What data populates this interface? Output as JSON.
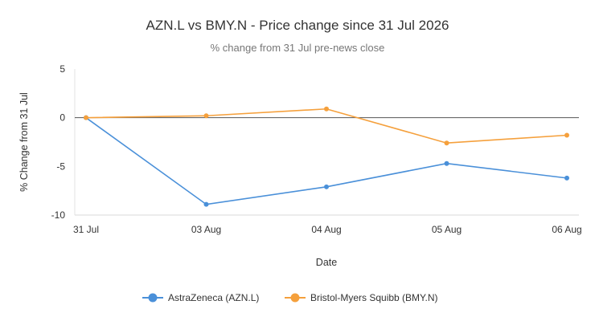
{
  "chart_data": {
    "type": "line",
    "title": "AZN.L vs BMY.N - Price change since 31 Jul 2026",
    "subtitle": "% change from 31 Jul pre-news close",
    "xlabel": "Date",
    "ylabel": "% Change from 31 Jul",
    "categories": [
      "31 Jul",
      "03 Aug",
      "04 Aug",
      "05 Aug",
      "06 Aug"
    ],
    "yticks": [
      "5",
      "0",
      "-5",
      "-10"
    ],
    "ylim": [
      -10,
      5
    ],
    "grid": "zero line only",
    "legend_position": "bottom-center",
    "series": [
      {
        "name": "AstraZeneca (AZN.L)",
        "color": "#4a90d9",
        "values": [
          0,
          -8.9,
          -7.1,
          -4.7,
          -6.2
        ]
      },
      {
        "name": "Bristol-Myers Squibb (BMY.N)",
        "color": "#f5a03c",
        "values": [
          0,
          0.2,
          0.9,
          -2.6,
          -1.8
        ]
      }
    ]
  }
}
